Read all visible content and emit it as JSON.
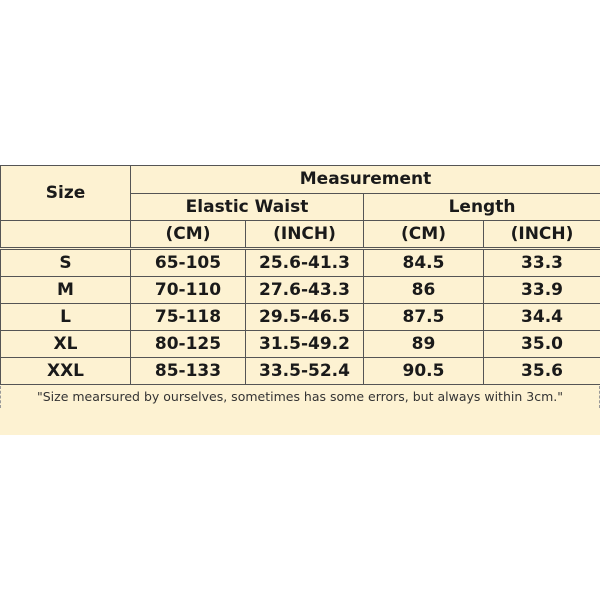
{
  "table": {
    "size_header": "Size",
    "group_header": "Measurement",
    "subgroups": [
      "Elastic Waist",
      "Length"
    ],
    "units": [
      "(CM)",
      "(INCH)",
      "(CM)",
      "(INCH)"
    ],
    "rows": [
      {
        "size": "S",
        "waist_cm": "65-105",
        "waist_inch": "25.6-41.3",
        "length_cm": "84.5",
        "length_inch": "33.3"
      },
      {
        "size": "M",
        "waist_cm": "70-110",
        "waist_inch": "27.6-43.3",
        "length_cm": "86",
        "length_inch": "33.9"
      },
      {
        "size": "L",
        "waist_cm": "75-118",
        "waist_inch": "29.5-46.5",
        "length_cm": "87.5",
        "length_inch": "34.4"
      },
      {
        "size": "XL",
        "waist_cm": "80-125",
        "waist_inch": "31.5-49.2",
        "length_cm": "89",
        "length_inch": "35.0"
      },
      {
        "size": "XXL",
        "waist_cm": "85-133",
        "waist_inch": "33.5-52.4",
        "length_cm": "90.5",
        "length_inch": "35.6"
      }
    ]
  },
  "note": "\"Size mearsured by ourselves, sometimes has some errors, but always within 3cm.\"",
  "colors": {
    "background": "#fdf2d2",
    "border": "#555555"
  }
}
